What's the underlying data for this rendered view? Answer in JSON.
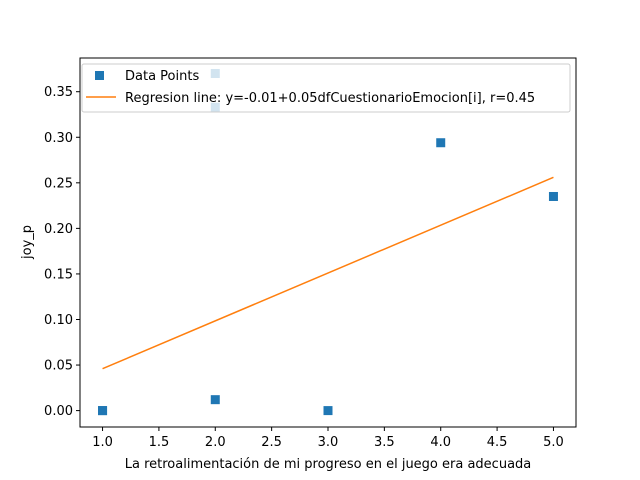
{
  "chart_data": {
    "type": "scatter",
    "title": "",
    "xlabel": "La retroalimentación de mi progreso en el juego era adecuada",
    "ylabel": "joy_p",
    "xlim": [
      0.8,
      5.2
    ],
    "ylim": [
      -0.018,
      0.387
    ],
    "xticks": [
      1.0,
      1.5,
      2.0,
      2.5,
      3.0,
      3.5,
      4.0,
      4.5,
      5.0
    ],
    "xtick_labels": [
      "1.0",
      "1.5",
      "2.0",
      "2.5",
      "3.0",
      "3.5",
      "4.0",
      "4.5",
      "5.0"
    ],
    "yticks": [
      0.0,
      0.05,
      0.1,
      0.15,
      0.2,
      0.25,
      0.3,
      0.35
    ],
    "ytick_labels": [
      "0.00",
      "0.05",
      "0.10",
      "0.15",
      "0.20",
      "0.25",
      "0.30",
      "0.35"
    ],
    "grid": false,
    "legend_position": "top-left",
    "series": [
      {
        "name": "Data Points",
        "kind": "scatter",
        "marker": "square",
        "color": "#1f77b4",
        "points": [
          {
            "x": 1.0,
            "y": 0.0
          },
          {
            "x": 1.0,
            "y": 0.0
          },
          {
            "x": 2.0,
            "y": 0.37
          },
          {
            "x": 2.0,
            "y": 0.333
          },
          {
            "x": 2.0,
            "y": 0.012
          },
          {
            "x": 3.0,
            "y": 0.0
          },
          {
            "x": 4.0,
            "y": 0.294
          },
          {
            "x": 5.0,
            "y": 0.235
          }
        ]
      },
      {
        "name": "Regresion line: y=-0.01+0.05dfCuestionarioEmocion[i], r=0.45",
        "kind": "line",
        "color": "#ff7f0e",
        "points": [
          {
            "x": 1.0,
            "y": 0.046
          },
          {
            "x": 5.0,
            "y": 0.256
          }
        ]
      }
    ]
  }
}
